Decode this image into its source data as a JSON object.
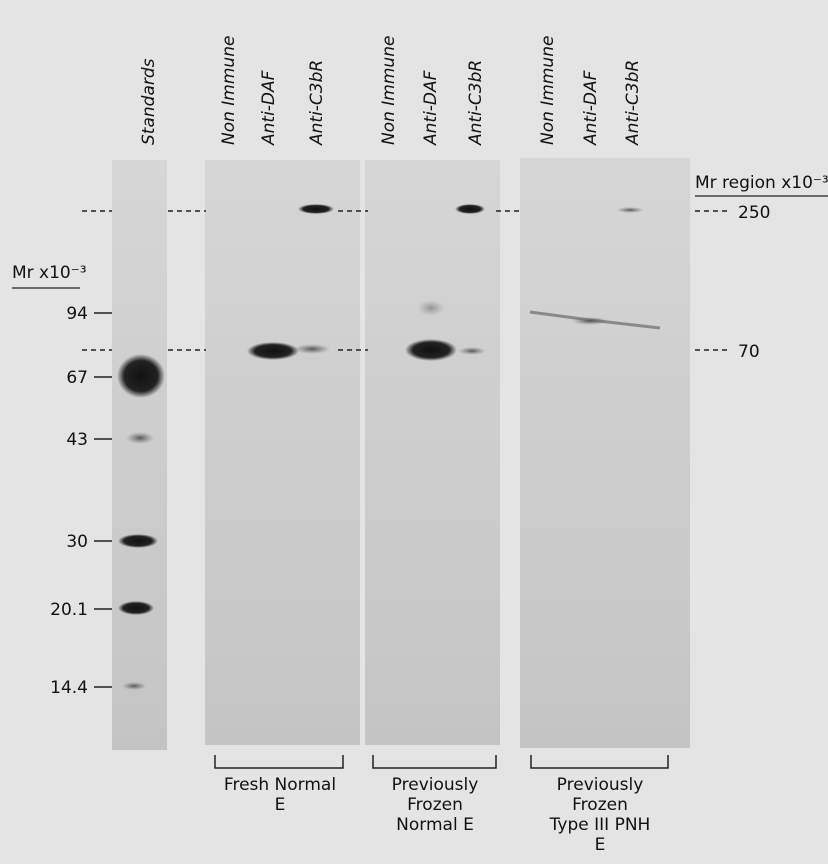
{
  "figure": {
    "lane_labels": {
      "standards": "Standards",
      "panels": [
        [
          "Non Immune",
          "Anti-DAF",
          "Anti-C3bR"
        ],
        [
          "Non Immune",
          "Anti-DAF",
          "Anti-C3bR"
        ],
        [
          "Non Immune",
          "Anti-DAF",
          "Anti-C3bR"
        ]
      ]
    },
    "left_axis": {
      "title": "Mr x10⁻³",
      "markers": [
        "94",
        "67",
        "43",
        "30",
        "20.1",
        "14.4"
      ]
    },
    "right_axis": {
      "title": "Mr region x10⁻³",
      "markers": [
        "250",
        "70"
      ]
    },
    "groups": [
      [
        "Fresh Normal",
        "E"
      ],
      [
        "Previously",
        "Frozen",
        "Normal E"
      ],
      [
        "Previously",
        "Frozen",
        "Type III PNH",
        "E"
      ]
    ]
  }
}
